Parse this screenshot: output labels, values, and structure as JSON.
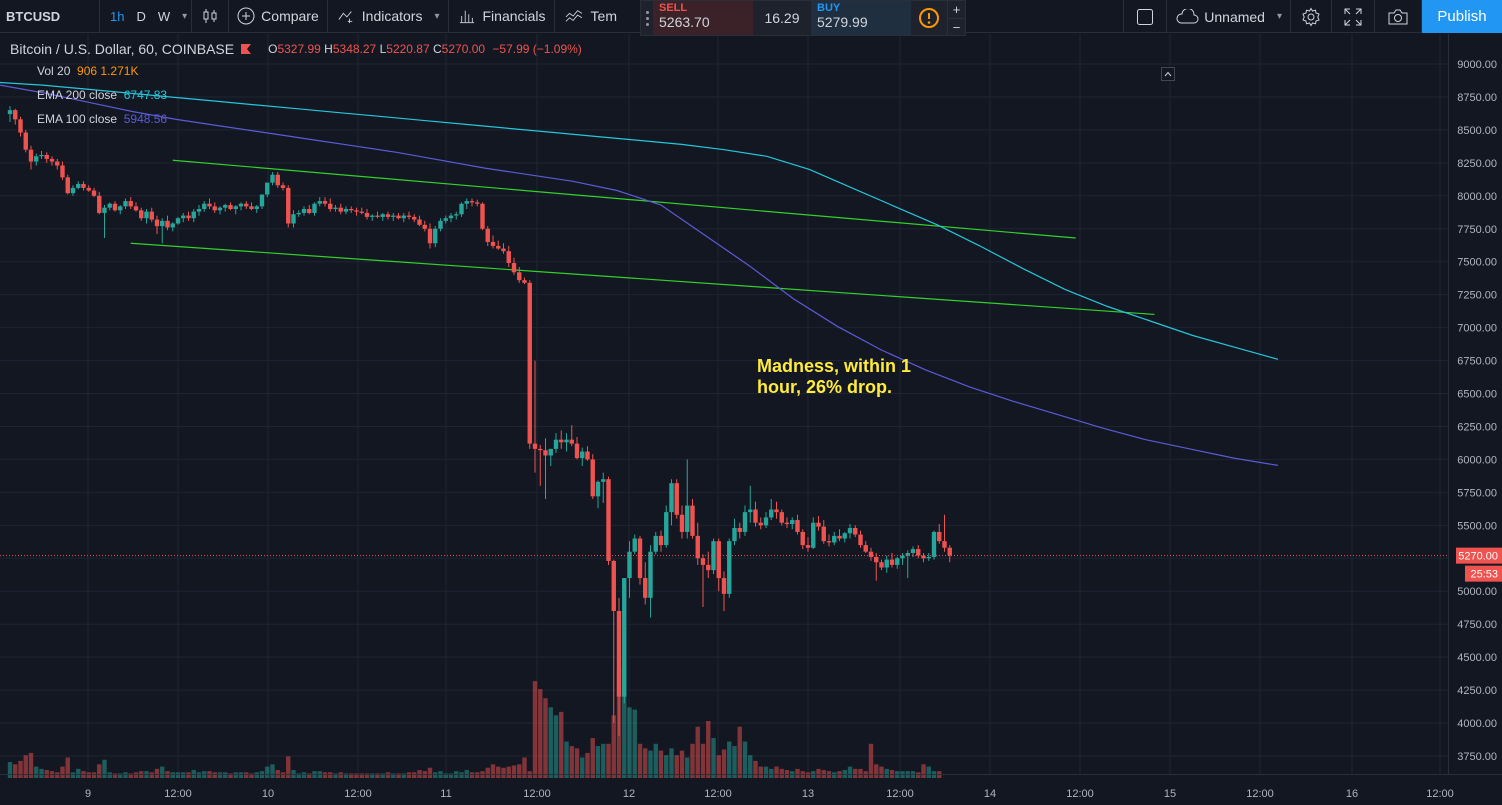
{
  "toolbar": {
    "symbol": "BTCUSD",
    "intervals": [
      "1h",
      "D",
      "W"
    ],
    "active_interval": "1h",
    "compare_label": "Compare",
    "indicators_label": "Indicators",
    "financials_label": "Financials",
    "templates_label": "Tem",
    "layout_name": "Unnamed",
    "publish_label": "Publish"
  },
  "trade": {
    "sell_label": "SELL",
    "sell_price": "5263.70",
    "spread": "16.29",
    "buy_label": "BUY",
    "buy_price": "5279.99",
    "plus": "+",
    "minus": "−"
  },
  "legend": {
    "title": "Bitcoin / U.S. Dollar, 60, COINBASE",
    "open_label": "O",
    "open": "5327.99",
    "high_label": "H",
    "high": "5348.27",
    "low_label": "L",
    "low": "5220.87",
    "close_label": "C",
    "close": "5270.00",
    "change": "−57.99 (−1.09%)",
    "vol_label": "Vol 20",
    "vol_value1": "906",
    "vol_value2": "1.271K",
    "ema200_label": "EMA 200 close",
    "ema200_value": "6747.83",
    "ema100_label": "EMA 100 close",
    "ema100_value": "5948.56"
  },
  "annotation": "Madness, within 1 hour, 26% drop.",
  "price_axis": {
    "current_price": "5270.00",
    "countdown": "25:53"
  },
  "colors": {
    "background": "#131722",
    "up": "#26a69a",
    "down": "#ef5350",
    "ema200": "#26c6da",
    "ema100": "#5b5bd6",
    "trendline": "#32d12a",
    "accent": "#2196f3",
    "annotation": "#ffeb3b"
  },
  "icons": [
    "candles-icon",
    "plus-circle-icon",
    "indicators-icon",
    "financials-icon",
    "templates-icon",
    "square-icon",
    "cloud-icon",
    "gear-icon",
    "fullscreen-icon",
    "camera-icon",
    "warning-icon"
  ],
  "chart_data": {
    "type": "candlestick",
    "ylim": [
      3600,
      9200
    ],
    "y_ticks": [
      3750,
      4000,
      4250,
      4500,
      4750,
      5000,
      5250,
      5500,
      5750,
      6000,
      6250,
      6500,
      6750,
      7000,
      7250,
      7500,
      7750,
      8000,
      8250,
      8500,
      8750,
      9000
    ],
    "x_ticks": [
      "9",
      "12:00",
      "10",
      "12:00",
      "11",
      "12:00",
      "12",
      "12:00",
      "13",
      "12:00",
      "14",
      "12:00",
      "15",
      "12:00",
      "16",
      "12:00"
    ],
    "trendlines": [
      {
        "from": [
          1,
          8270
        ],
        "to": [
          68,
          7680
        ]
      },
      {
        "from": [
          -7,
          7640
        ],
        "to": [
          83,
          7100
        ]
      }
    ],
    "candles": [
      [
        8620,
        8680,
        8560,
        8650
      ],
      [
        8650,
        8660,
        8540,
        8580
      ],
      [
        8580,
        8600,
        8450,
        8480
      ],
      [
        8480,
        8500,
        8330,
        8350
      ],
      [
        8350,
        8380,
        8200,
        8260
      ],
      [
        8260,
        8320,
        8230,
        8300
      ],
      [
        8300,
        8340,
        8280,
        8310
      ],
      [
        8310,
        8330,
        8250,
        8280
      ],
      [
        8280,
        8300,
        8230,
        8260
      ],
      [
        8260,
        8280,
        8200,
        8230
      ],
      [
        8230,
        8260,
        8120,
        8140
      ],
      [
        8140,
        8160,
        8010,
        8020
      ],
      [
        8020,
        8080,
        8000,
        8060
      ],
      [
        8060,
        8110,
        8050,
        8090
      ],
      [
        8090,
        8110,
        8040,
        8060
      ],
      [
        8060,
        8080,
        8030,
        8040
      ],
      [
        8040,
        8060,
        7990,
        8000
      ],
      [
        8000,
        8030,
        7860,
        7870
      ],
      [
        7870,
        7930,
        7680,
        7910
      ],
      [
        7910,
        7950,
        7890,
        7940
      ],
      [
        7940,
        7960,
        7880,
        7890
      ],
      [
        7890,
        7930,
        7860,
        7920
      ],
      [
        7920,
        7980,
        7900,
        7960
      ],
      [
        7960,
        7990,
        7900,
        7920
      ],
      [
        7920,
        7950,
        7880,
        7890
      ],
      [
        7890,
        7910,
        7810,
        7830
      ],
      [
        7830,
        7900,
        7790,
        7880
      ],
      [
        7880,
        7910,
        7800,
        7820
      ],
      [
        7820,
        7850,
        7710,
        7770
      ],
      [
        7770,
        7830,
        7640,
        7810
      ],
      [
        7810,
        7850,
        7740,
        7760
      ],
      [
        7760,
        7800,
        7730,
        7790
      ],
      [
        7790,
        7840,
        7780,
        7830
      ],
      [
        7830,
        7870,
        7800,
        7850
      ],
      [
        7850,
        7880,
        7810,
        7830
      ],
      [
        7830,
        7900,
        7800,
        7880
      ],
      [
        7880,
        7930,
        7850,
        7900
      ],
      [
        7900,
        7960,
        7880,
        7940
      ],
      [
        7940,
        7980,
        7900,
        7920
      ],
      [
        7920,
        7950,
        7870,
        7890
      ],
      [
        7890,
        7920,
        7860,
        7910
      ],
      [
        7910,
        7940,
        7880,
        7930
      ],
      [
        7930,
        7950,
        7890,
        7900
      ],
      [
        7900,
        7930,
        7860,
        7920
      ],
      [
        7920,
        7950,
        7890,
        7940
      ],
      [
        7940,
        7960,
        7900,
        7920
      ],
      [
        7920,
        7950,
        7890,
        7900
      ],
      [
        7900,
        7930,
        7870,
        7920
      ],
      [
        7920,
        7980,
        7900,
        8010
      ],
      [
        8010,
        8100,
        7990,
        8100
      ],
      [
        8100,
        8180,
        8080,
        8160
      ],
      [
        8160,
        8180,
        8060,
        8080
      ],
      [
        8080,
        8100,
        8040,
        8060
      ],
      [
        8060,
        8080,
        7760,
        7790
      ],
      [
        7790,
        7890,
        7760,
        7860
      ],
      [
        7860,
        7890,
        7840,
        7870
      ],
      [
        7870,
        7920,
        7850,
        7900
      ],
      [
        7900,
        7930,
        7860,
        7870
      ],
      [
        7870,
        7950,
        7850,
        7940
      ],
      [
        7940,
        7990,
        7920,
        7960
      ],
      [
        7960,
        7990,
        7920,
        7940
      ],
      [
        7940,
        7980,
        7880,
        7900
      ],
      [
        7900,
        7930,
        7880,
        7910
      ],
      [
        7910,
        7940,
        7860,
        7880
      ],
      [
        7880,
        7920,
        7860,
        7900
      ],
      [
        7900,
        7920,
        7870,
        7890
      ],
      [
        7890,
        7910,
        7850,
        7880
      ],
      [
        7880,
        7910,
        7860,
        7870
      ],
      [
        7870,
        7900,
        7820,
        7840
      ],
      [
        7840,
        7860,
        7810,
        7850
      ],
      [
        7850,
        7880,
        7830,
        7840
      ],
      [
        7840,
        7870,
        7810,
        7860
      ],
      [
        7860,
        7880,
        7820,
        7840
      ],
      [
        7840,
        7870,
        7810,
        7850
      ],
      [
        7850,
        7870,
        7820,
        7830
      ],
      [
        7830,
        7870,
        7800,
        7850
      ],
      [
        7850,
        7880,
        7820,
        7840
      ],
      [
        7840,
        7860,
        7800,
        7820
      ],
      [
        7820,
        7850,
        7770,
        7780
      ],
      [
        7780,
        7810,
        7730,
        7750
      ],
      [
        7750,
        7790,
        7600,
        7640
      ],
      [
        7640,
        7770,
        7610,
        7750
      ],
      [
        7750,
        7830,
        7730,
        7810
      ],
      [
        7810,
        7850,
        7790,
        7830
      ],
      [
        7830,
        7870,
        7800,
        7850
      ],
      [
        7850,
        7880,
        7820,
        7860
      ],
      [
        7860,
        7950,
        7840,
        7940
      ],
      [
        7940,
        7980,
        7900,
        7960
      ],
      [
        7960,
        7980,
        7920,
        7950
      ],
      [
        7950,
        7970,
        7920,
        7940
      ],
      [
        7940,
        7950,
        7740,
        7750
      ],
      [
        7750,
        7770,
        7620,
        7650
      ],
      [
        7650,
        7700,
        7600,
        7620
      ],
      [
        7620,
        7660,
        7590,
        7600
      ],
      [
        7600,
        7640,
        7560,
        7580
      ],
      [
        7580,
        7620,
        7460,
        7490
      ],
      [
        7490,
        7530,
        7400,
        7420
      ],
      [
        7420,
        7460,
        7340,
        7360
      ],
      [
        7360,
        7380,
        7330,
        7340
      ],
      [
        7340,
        7360,
        6080,
        6120
      ],
      [
        6120,
        6750,
        5900,
        6080
      ],
      [
        6080,
        6110,
        5800,
        6070
      ],
      [
        6070,
        6160,
        5700,
        6030
      ],
      [
        6030,
        6080,
        5950,
        6080
      ],
      [
        6080,
        6200,
        6050,
        6150
      ],
      [
        6150,
        6220,
        6080,
        6130
      ],
      [
        6130,
        6200,
        6060,
        6150
      ],
      [
        6150,
        6260,
        6100,
        6120
      ],
      [
        6120,
        6170,
        6000,
        6010
      ],
      [
        6010,
        6090,
        5950,
        6060
      ],
      [
        6060,
        6100,
        5990,
        6000
      ],
      [
        6000,
        6040,
        5700,
        5720
      ],
      [
        5720,
        5840,
        5630,
        5830
      ],
      [
        5830,
        5900,
        5670,
        5850
      ],
      [
        5850,
        5870,
        5200,
        5230
      ],
      [
        5230,
        5240,
        4000,
        4850
      ],
      [
        4850,
        4950,
        3900,
        4200
      ],
      [
        4200,
        5100,
        4150,
        5100
      ],
      [
        5100,
        5380,
        4950,
        5300
      ],
      [
        5300,
        5430,
        5280,
        5400
      ],
      [
        5400,
        5420,
        5050,
        5100
      ],
      [
        5100,
        5220,
        4900,
        4950
      ],
      [
        4950,
        5350,
        4800,
        5300
      ],
      [
        5300,
        5450,
        5280,
        5420
      ],
      [
        5420,
        5460,
        5300,
        5350
      ],
      [
        5350,
        5650,
        5330,
        5600
      ],
      [
        5600,
        5850,
        5500,
        5820
      ],
      [
        5820,
        5850,
        5550,
        5580
      ],
      [
        5580,
        5650,
        5400,
        5450
      ],
      [
        5450,
        6000,
        5400,
        5650
      ],
      [
        5650,
        5700,
        5400,
        5420
      ],
      [
        5420,
        5520,
        5200,
        5250
      ],
      [
        5250,
        5280,
        4880,
        5200
      ],
      [
        5200,
        5300,
        5100,
        5160
      ],
      [
        5160,
        5400,
        5130,
        5380
      ],
      [
        5380,
        5400,
        5000,
        5100
      ],
      [
        5100,
        5150,
        4850,
        4980
      ],
      [
        4980,
        5400,
        4950,
        5380
      ],
      [
        5380,
        5550,
        5350,
        5480
      ],
      [
        5480,
        5520,
        5400,
        5450
      ],
      [
        5450,
        5650,
        5420,
        5600
      ],
      [
        5600,
        5800,
        5520,
        5620
      ],
      [
        5620,
        5680,
        5490,
        5520
      ],
      [
        5520,
        5560,
        5470,
        5500
      ],
      [
        5500,
        5600,
        5480,
        5560
      ],
      [
        5560,
        5700,
        5540,
        5620
      ],
      [
        5620,
        5680,
        5550,
        5600
      ],
      [
        5600,
        5620,
        5500,
        5520
      ],
      [
        5520,
        5560,
        5480,
        5510
      ],
      [
        5510,
        5560,
        5470,
        5540
      ],
      [
        5540,
        5580,
        5430,
        5450
      ],
      [
        5450,
        5470,
        5320,
        5350
      ],
      [
        5350,
        5410,
        5300,
        5330
      ],
      [
        5330,
        5560,
        5320,
        5520
      ],
      [
        5520,
        5570,
        5460,
        5490
      ],
      [
        5490,
        5540,
        5360,
        5380
      ],
      [
        5380,
        5430,
        5340,
        5370
      ],
      [
        5370,
        5450,
        5350,
        5420
      ],
      [
        5420,
        5470,
        5380,
        5400
      ],
      [
        5400,
        5450,
        5370,
        5440
      ],
      [
        5440,
        5510,
        5400,
        5480
      ],
      [
        5480,
        5500,
        5410,
        5430
      ],
      [
        5430,
        5460,
        5330,
        5350
      ],
      [
        5350,
        5380,
        5290,
        5300
      ],
      [
        5300,
        5330,
        5230,
        5260
      ],
      [
        5260,
        5290,
        5080,
        5220
      ],
      [
        5220,
        5240,
        5160,
        5180
      ],
      [
        5180,
        5270,
        5140,
        5240
      ],
      [
        5240,
        5290,
        5180,
        5200
      ],
      [
        5200,
        5260,
        5170,
        5250
      ],
      [
        5250,
        5290,
        5200,
        5270
      ],
      [
        5270,
        5310,
        5100,
        5290
      ],
      [
        5290,
        5340,
        5260,
        5320
      ],
      [
        5320,
        5350,
        5250,
        5270
      ],
      [
        5270,
        5290,
        5220,
        5250
      ],
      [
        5250,
        5290,
        5230,
        5260
      ],
      [
        5260,
        5460,
        5240,
        5450
      ],
      [
        5450,
        5510,
        5360,
        5380
      ],
      [
        5380,
        5580,
        5300,
        5330
      ],
      [
        5330,
        5350,
        5220,
        5270
      ]
    ],
    "ema200": [
      8860,
      8840,
      8810,
      8780,
      8750,
      8720,
      8690,
      8660,
      8630,
      8600,
      8570,
      8540,
      8510,
      8480,
      8450,
      8420,
      8390,
      8350,
      8300,
      8200,
      8060,
      7920,
      7780,
      7620,
      7450,
      7290,
      7160,
      7050,
      6940,
      6850,
      6760
    ],
    "ema100": [
      8840,
      8780,
      8710,
      8640,
      8580,
      8530,
      8480,
      8430,
      8380,
      8330,
      8270,
      8210,
      8160,
      8110,
      8040,
      7930,
      7700,
      7470,
      7220,
      7010,
      6830,
      6680,
      6550,
      6440,
      6340,
      6240,
      6150,
      6080,
      6010,
      5955
    ],
    "volume": [
      0.14,
      0.12,
      0.15,
      0.2,
      0.22,
      0.1,
      0.08,
      0.07,
      0.06,
      0.05,
      0.1,
      0.18,
      0.05,
      0.08,
      0.06,
      0.05,
      0.05,
      0.12,
      0.16,
      0.05,
      0.04,
      0.04,
      0.05,
      0.04,
      0.05,
      0.06,
      0.06,
      0.05,
      0.08,
      0.1,
      0.06,
      0.05,
      0.05,
      0.05,
      0.05,
      0.07,
      0.05,
      0.06,
      0.06,
      0.05,
      0.05,
      0.05,
      0.04,
      0.05,
      0.05,
      0.05,
      0.04,
      0.05,
      0.06,
      0.1,
      0.12,
      0.07,
      0.05,
      0.19,
      0.07,
      0.04,
      0.05,
      0.04,
      0.06,
      0.06,
      0.05,
      0.05,
      0.04,
      0.05,
      0.04,
      0.04,
      0.04,
      0.04,
      0.04,
      0.04,
      0.04,
      0.04,
      0.05,
      0.04,
      0.04,
      0.04,
      0.05,
      0.05,
      0.07,
      0.06,
      0.09,
      0.05,
      0.06,
      0.04,
      0.04,
      0.06,
      0.05,
      0.07,
      0.05,
      0.05,
      0.06,
      0.09,
      0.12,
      0.1,
      0.09,
      0.1,
      0.11,
      0.12,
      0.18,
      0.06,
      0.85,
      0.78,
      0.7,
      0.62,
      0.55,
      0.58,
      0.32,
      0.28,
      0.26,
      0.18,
      0.22,
      0.35,
      0.28,
      0.3,
      0.3,
      0.55,
      0.95,
      1.0,
      0.62,
      0.6,
      0.3,
      0.26,
      0.24,
      0.3,
      0.24,
      0.2,
      0.26,
      0.2,
      0.24,
      0.18,
      0.3,
      0.45,
      0.3,
      0.5,
      0.35,
      0.2,
      0.25,
      0.32,
      0.28,
      0.45,
      0.32,
      0.2,
      0.15,
      0.1,
      0.1,
      0.08,
      0.1,
      0.08,
      0.07,
      0.06,
      0.08,
      0.06,
      0.05,
      0.06,
      0.08,
      0.07,
      0.06,
      0.05,
      0.06,
      0.07,
      0.1,
      0.08,
      0.08,
      0.06,
      0.3,
      0.12,
      0.1,
      0.08,
      0.07,
      0.06,
      0.06,
      0.06,
      0.06,
      0.05,
      0.12,
      0.1,
      0.06,
      0.06
    ]
  }
}
